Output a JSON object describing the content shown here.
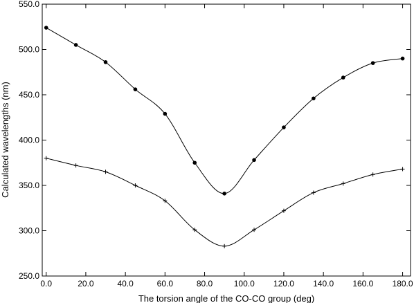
{
  "chart_data": {
    "type": "line",
    "title": "",
    "xlabel": "The torsion angle of the CO-CO group (deg)",
    "ylabel": "Calculated wavelengths (nm)",
    "xlim": [
      -2,
      184
    ],
    "ylim": [
      250,
      550
    ],
    "x_ticks": [
      0,
      20,
      40,
      60,
      80,
      100,
      120,
      140,
      160,
      180
    ],
    "x_tick_labels": [
      "0.0",
      "20.0",
      "40.0",
      "60.0",
      "80.0",
      "100.0",
      "120.0",
      "140.0",
      "160.0",
      "180.0"
    ],
    "y_ticks": [
      250,
      300,
      350,
      400,
      450,
      500,
      550
    ],
    "y_tick_labels": [
      "250.0",
      "300.0",
      "350.0",
      "400.0",
      "450.0",
      "500.0",
      "550.0"
    ],
    "grid": false,
    "legend": "none",
    "series": [
      {
        "marker": "dot",
        "color": "#000000",
        "x": [
          0,
          15,
          30,
          45,
          60,
          75,
          90,
          105,
          120,
          135,
          150,
          165,
          180
        ],
        "y": [
          524,
          505,
          486,
          456,
          429,
          375,
          341,
          378,
          414,
          446,
          469,
          485,
          490
        ]
      },
      {
        "marker": "plus",
        "color": "#000000",
        "x": [
          0,
          15,
          30,
          45,
          60,
          75,
          90,
          105,
          120,
          135,
          150,
          165,
          180
        ],
        "y": [
          380,
          372,
          365,
          350,
          333,
          301,
          283,
          301,
          322,
          342,
          352,
          362,
          368
        ]
      }
    ]
  }
}
